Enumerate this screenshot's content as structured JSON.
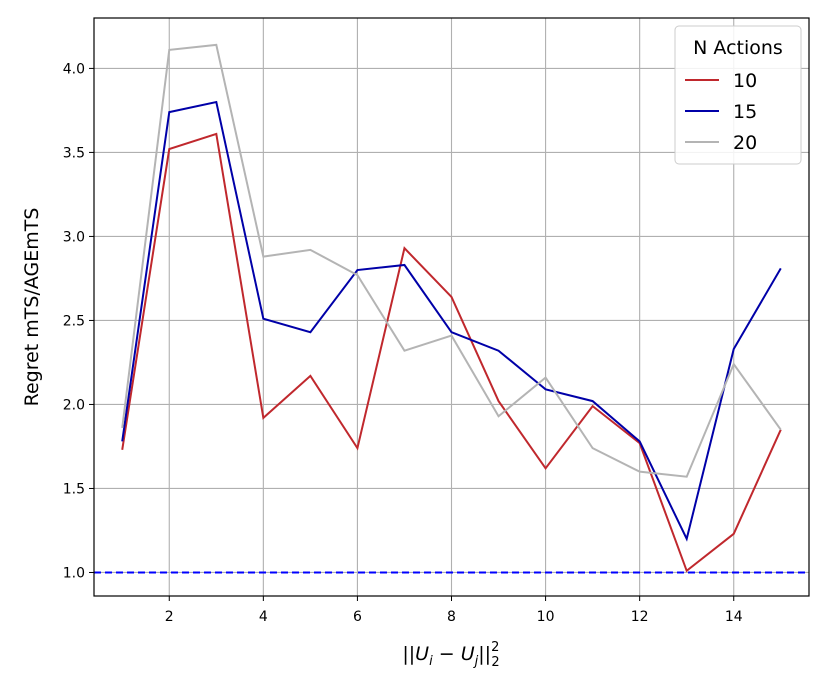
{
  "chart_data": {
    "type": "line",
    "x": [
      1,
      2,
      3,
      4,
      5,
      6,
      7,
      8,
      9,
      10,
      11,
      12,
      13,
      14,
      15
    ],
    "series": [
      {
        "name": "10",
        "color": "#c0282d",
        "values": [
          1.73,
          3.52,
          3.61,
          1.92,
          2.17,
          1.74,
          2.93,
          2.64,
          2.02,
          1.62,
          1.99,
          1.77,
          1.01,
          1.23,
          1.85
        ]
      },
      {
        "name": "15",
        "color": "#0000a8",
        "values": [
          1.78,
          3.74,
          3.8,
          2.51,
          2.43,
          2.8,
          2.83,
          2.43,
          2.32,
          2.09,
          2.02,
          1.78,
          1.2,
          2.33,
          2.81
        ]
      },
      {
        "name": "20",
        "color": "#b4b4b4",
        "values": [
          1.86,
          4.11,
          4.14,
          2.88,
          2.92,
          2.77,
          2.32,
          2.41,
          1.93,
          2.16,
          1.74,
          1.6,
          1.57,
          2.24,
          1.85
        ]
      }
    ],
    "reference_line": {
      "y": 1.0,
      "color": "#0000ff",
      "style": "dashed"
    },
    "xlabel": "||U_i − U_j||_2^2",
    "ylabel": "Regret mTS/AGEmTS",
    "xlim": [
      0.4,
      15.6
    ],
    "ylim": [
      0.86,
      4.3
    ],
    "xticks": [
      2,
      4,
      6,
      8,
      10,
      12,
      14
    ],
    "yticks": [
      1.0,
      1.5,
      2.0,
      2.5,
      3.0,
      3.5,
      4.0
    ],
    "grid": true,
    "legend": {
      "title": "N Actions",
      "placement": "top-right"
    }
  }
}
